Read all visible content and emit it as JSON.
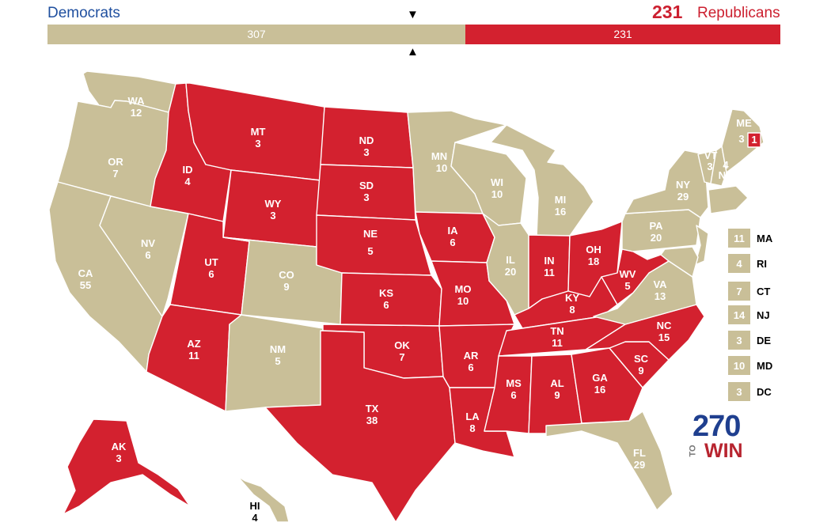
{
  "header": {
    "dem_label": "Democrats",
    "rep_label": "Republicans",
    "rep_count": "231",
    "bar_dem": "307",
    "bar_rep": "231"
  },
  "colors": {
    "dem": "#c9bf98",
    "rep": "#d3212f",
    "dem_text": "#1f4f9f",
    "rep_text": "#cc1f2f"
  },
  "states": {
    "WA": {
      "abbr": "WA",
      "ev": "12",
      "winner": "D"
    },
    "OR": {
      "abbr": "OR",
      "ev": "7",
      "winner": "D"
    },
    "CA": {
      "abbr": "CA",
      "ev": "55",
      "winner": "D"
    },
    "NV": {
      "abbr": "NV",
      "ev": "6",
      "winner": "D"
    },
    "ID": {
      "abbr": "ID",
      "ev": "4",
      "winner": "R"
    },
    "MT": {
      "abbr": "MT",
      "ev": "3",
      "winner": "R"
    },
    "WY": {
      "abbr": "WY",
      "ev": "3",
      "winner": "R"
    },
    "UT": {
      "abbr": "UT",
      "ev": "6",
      "winner": "R"
    },
    "AZ": {
      "abbr": "AZ",
      "ev": "11",
      "winner": "R"
    },
    "CO": {
      "abbr": "CO",
      "ev": "9",
      "winner": "D"
    },
    "NM": {
      "abbr": "NM",
      "ev": "5",
      "winner": "D"
    },
    "ND": {
      "abbr": "ND",
      "ev": "3",
      "winner": "R"
    },
    "SD": {
      "abbr": "SD",
      "ev": "3",
      "winner": "R"
    },
    "NE": {
      "abbr": "NE",
      "ev": "5",
      "winner": "R"
    },
    "KS": {
      "abbr": "KS",
      "ev": "6",
      "winner": "R"
    },
    "OK": {
      "abbr": "OK",
      "ev": "7",
      "winner": "R"
    },
    "TX": {
      "abbr": "TX",
      "ev": "38",
      "winner": "R"
    },
    "MN": {
      "abbr": "MN",
      "ev": "10",
      "winner": "D"
    },
    "IA": {
      "abbr": "IA",
      "ev": "6",
      "winner": "R"
    },
    "MO": {
      "abbr": "MO",
      "ev": "10",
      "winner": "R"
    },
    "AR": {
      "abbr": "AR",
      "ev": "6",
      "winner": "R"
    },
    "LA": {
      "abbr": "LA",
      "ev": "8",
      "winner": "R"
    },
    "WI": {
      "abbr": "WI",
      "ev": "10",
      "winner": "D"
    },
    "IL": {
      "abbr": "IL",
      "ev": "20",
      "winner": "D"
    },
    "MI": {
      "abbr": "MI",
      "ev": "16",
      "winner": "D"
    },
    "IN": {
      "abbr": "IN",
      "ev": "11",
      "winner": "R"
    },
    "OH": {
      "abbr": "OH",
      "ev": "18",
      "winner": "R"
    },
    "KY": {
      "abbr": "KY",
      "ev": "8",
      "winner": "R"
    },
    "TN": {
      "abbr": "TN",
      "ev": "11",
      "winner": "R"
    },
    "MS": {
      "abbr": "MS",
      "ev": "6",
      "winner": "R"
    },
    "AL": {
      "abbr": "AL",
      "ev": "9",
      "winner": "R"
    },
    "GA": {
      "abbr": "GA",
      "ev": "16",
      "winner": "R"
    },
    "FL": {
      "abbr": "FL",
      "ev": "29",
      "winner": "D"
    },
    "SC": {
      "abbr": "SC",
      "ev": "9",
      "winner": "R"
    },
    "NC": {
      "abbr": "NC",
      "ev": "15",
      "winner": "R"
    },
    "VA": {
      "abbr": "VA",
      "ev": "13",
      "winner": "D"
    },
    "WV": {
      "abbr": "WV",
      "ev": "5",
      "winner": "R"
    },
    "PA": {
      "abbr": "PA",
      "ev": "20",
      "winner": "D"
    },
    "NY": {
      "abbr": "NY",
      "ev": "29",
      "winner": "D"
    },
    "VT": {
      "abbr": "VT",
      "ev": "3",
      "winner": "D"
    },
    "NH": {
      "abbr": "NH",
      "ev": "4",
      "winner": "D"
    },
    "ME": {
      "abbr": "ME",
      "ev": "3",
      "winner": "D",
      "split_ev": "1"
    },
    "AK": {
      "abbr": "AK",
      "ev": "3",
      "winner": "R"
    },
    "HI": {
      "abbr": "HI",
      "ev": "4",
      "winner": "D"
    }
  },
  "small_states": [
    {
      "abbr": "MA",
      "ev": "11",
      "winner": "D"
    },
    {
      "abbr": "RI",
      "ev": "4",
      "winner": "D"
    },
    {
      "abbr": "CT",
      "ev": "7",
      "winner": "D"
    },
    {
      "abbr": "NJ",
      "ev": "14",
      "winner": "D"
    },
    {
      "abbr": "DE",
      "ev": "3",
      "winner": "D"
    },
    {
      "abbr": "MD",
      "ev": "10",
      "winner": "D"
    },
    {
      "abbr": "DC",
      "ev": "3",
      "winner": "D"
    }
  ],
  "logo": {
    "number": "270",
    "to": "TO",
    "win": "WIN"
  }
}
